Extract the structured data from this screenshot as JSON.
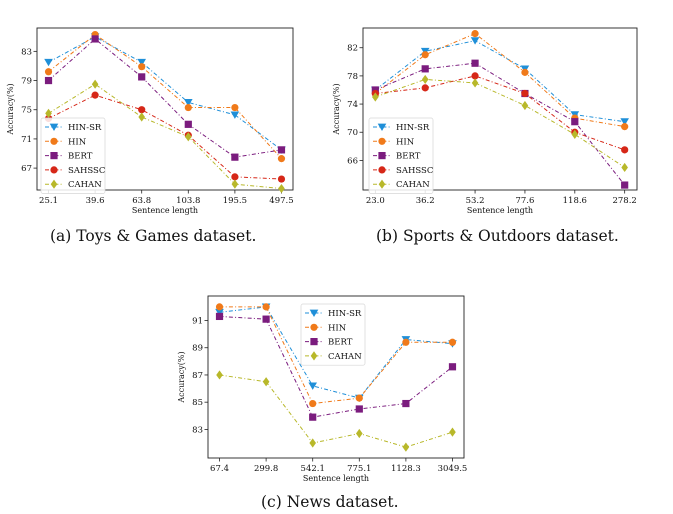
{
  "figure": {
    "captions": [
      "(a) Toys & Games dataset.",
      "(b) Sports & Outdoors dataset.",
      "(c) News dataset."
    ]
  },
  "series_styles": {
    "HIN-SR": {
      "color": "#1f8fd8",
      "marker": "triangle-down"
    },
    "HIN": {
      "color": "#f07a1a",
      "marker": "circle"
    },
    "BERT": {
      "color": "#7b1c7e",
      "marker": "square"
    },
    "SAHSSC": {
      "color": "#d62718",
      "marker": "circle"
    },
    "CAHAN": {
      "color": "#b8b82a",
      "marker": "diamond"
    }
  },
  "chart_data": [
    {
      "type": "line",
      "categories": [
        "25.1",
        "39.6",
        "63.8",
        "103.8",
        "195.5",
        "497.5"
      ],
      "xlabel": "Sentence length",
      "ylabel": "Accuracy(%)",
      "yticks": [
        67,
        71,
        75,
        79,
        83
      ],
      "ylim": [
        64.0,
        86.2
      ],
      "legend_position": "lower-left",
      "series": [
        {
          "name": "HIN-SR",
          "values": [
            81.5,
            85.0,
            81.5,
            76.0,
            74.3,
            69.5
          ]
        },
        {
          "name": "HIN",
          "values": [
            80.2,
            85.3,
            80.9,
            75.3,
            75.3,
            68.3
          ]
        },
        {
          "name": "BERT",
          "values": [
            79.0,
            84.7,
            79.5,
            73.0,
            68.5,
            69.5
          ]
        },
        {
          "name": "SAHSSC",
          "values": [
            73.8,
            77.0,
            75.0,
            71.5,
            65.8,
            65.5
          ]
        },
        {
          "name": "CAHAN",
          "values": [
            74.5,
            78.5,
            74.0,
            71.3,
            64.8,
            64.2
          ]
        }
      ]
    },
    {
      "type": "line",
      "categories": [
        "23.0",
        "36.2",
        "53.2",
        "77.6",
        "118.6",
        "278.2"
      ],
      "xlabel": "Sentence length",
      "ylabel": "Accuracy(%)",
      "yticks": [
        66,
        70,
        74,
        78,
        82
      ],
      "ylim": [
        61.8,
        84.8
      ],
      "legend_position": "lower-left",
      "series": [
        {
          "name": "HIN-SR",
          "values": [
            76.0,
            81.5,
            83.0,
            79.0,
            72.5,
            71.5
          ]
        },
        {
          "name": "HIN",
          "values": [
            75.5,
            81.0,
            84.0,
            78.5,
            72.0,
            70.8
          ]
        },
        {
          "name": "BERT",
          "values": [
            76.0,
            79.0,
            79.8,
            75.5,
            71.5,
            62.5
          ]
        },
        {
          "name": "SAHSSC",
          "values": [
            75.5,
            76.3,
            78.0,
            75.5,
            70.0,
            67.5
          ]
        },
        {
          "name": "CAHAN",
          "values": [
            75.0,
            77.5,
            77.0,
            73.8,
            69.7,
            65.0
          ]
        }
      ]
    },
    {
      "type": "line",
      "categories": [
        "67.4",
        "299.8",
        "542.1",
        "775.1",
        "1128.3",
        "3049.5"
      ],
      "xlabel": "Sentence length",
      "ylabel": "Accuracy(%)",
      "yticks": [
        83,
        85,
        87,
        89,
        91
      ],
      "ylim": [
        80.9,
        92.8
      ],
      "legend_position": "top-center",
      "series": [
        {
          "name": "HIN-SR",
          "values": [
            91.6,
            92.0,
            86.2,
            85.3,
            89.6,
            89.3
          ]
        },
        {
          "name": "HIN",
          "values": [
            92.0,
            92.0,
            84.9,
            85.3,
            89.4,
            89.4
          ]
        },
        {
          "name": "BERT",
          "values": [
            91.3,
            91.1,
            83.9,
            84.5,
            84.9,
            87.6
          ]
        },
        {
          "name": "CAHAN",
          "values": [
            87.0,
            86.5,
            82.0,
            82.7,
            81.7,
            82.8
          ]
        }
      ]
    }
  ]
}
